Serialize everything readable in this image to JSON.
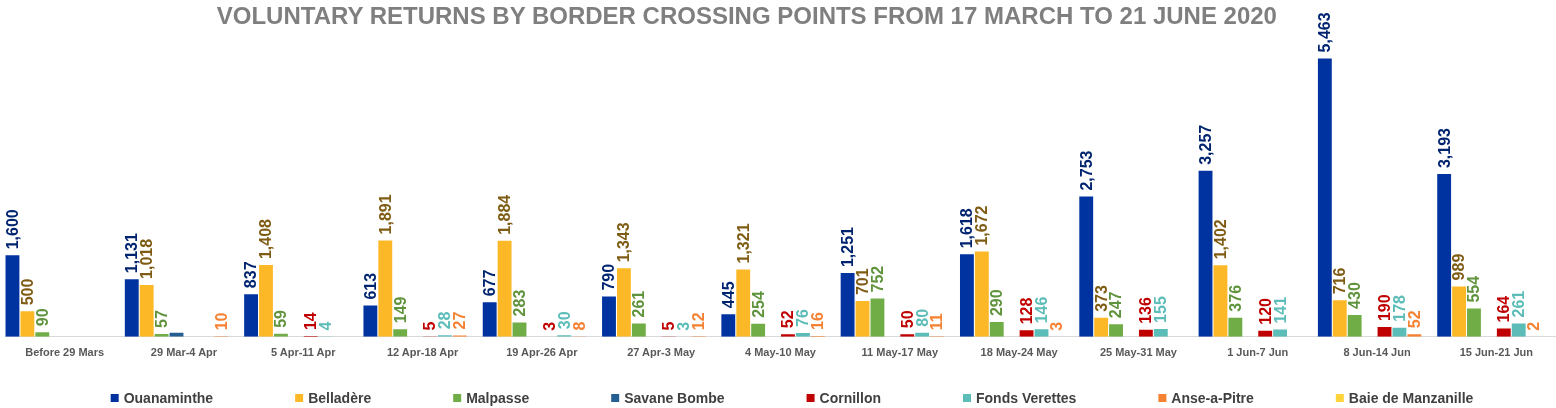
{
  "chart_data": {
    "type": "bar",
    "title": "VOLUNTARY RETURNS BY BORDER CROSSING POINTS FROM 17 MARCH TO 21 JUNE 2020",
    "categories": [
      "Before 29 Mars",
      "29 Mar-4 Apr",
      "5 Apr-11 Apr",
      "12 Apr-18 Apr",
      "19 Apr-26 Apr",
      "27 Apr-3 May",
      "4 May-10 May",
      "11 May-17 May",
      "18 May-24 May",
      "25 May-31 May",
      "1 Jun-7 Jun",
      "8 Jun-14 Jun",
      "15 Jun-21 Jun"
    ],
    "series": [
      {
        "name": "Ouanaminthe",
        "color": "#0033a0",
        "values": [
          1600,
          1131,
          837,
          613,
          677,
          790,
          445,
          1251,
          1618,
          2753,
          3257,
          5463,
          3193
        ],
        "value_labels": [
          "1,600",
          "1,131",
          "837",
          "613",
          "677",
          "790",
          "445",
          "1,251",
          "1,618",
          "2,753",
          "3,257",
          "5,463",
          "3,193"
        ]
      },
      {
        "name": "Belladère",
        "color": "#fdb827",
        "values": [
          500,
          1018,
          1408,
          1891,
          1884,
          1343,
          1321,
          701,
          1672,
          373,
          1402,
          716,
          989
        ],
        "value_labels": [
          "500",
          "1,018",
          "1,408",
          "1,891",
          "1,884",
          "1,343",
          "1,321",
          "701",
          "1,672",
          "373",
          "1,402",
          "716",
          "989"
        ]
      },
      {
        "name": "Malpasse",
        "color": "#70ad47",
        "values": [
          90,
          57,
          59,
          149,
          283,
          261,
          254,
          752,
          290,
          247,
          376,
          430,
          554
        ],
        "value_labels": [
          "90",
          "57",
          "59",
          "149",
          "283",
          "261",
          "254",
          "752",
          "290",
          "247",
          "376",
          "430",
          "554"
        ]
      },
      {
        "name": "Savane Bombe",
        "color": "#255e91",
        "values": [
          null,
          80,
          null,
          null,
          null,
          null,
          null,
          null,
          null,
          null,
          null,
          null,
          null
        ]
      },
      {
        "name": "Cornillon",
        "color": "#c00000",
        "values": [
          null,
          null,
          14,
          5,
          3,
          5,
          52,
          50,
          128,
          136,
          120,
          190,
          164
        ],
        "value_labels": [
          null,
          null,
          "14",
          "5",
          "3",
          "5",
          "52",
          "50",
          "128",
          "136",
          "120",
          "190",
          "164"
        ]
      },
      {
        "name": "Fonds Verettes",
        "color": "#5bbcb8",
        "values": [
          null,
          null,
          4,
          28,
          30,
          3,
          76,
          80,
          146,
          155,
          141,
          178,
          261
        ],
        "value_labels": [
          null,
          null,
          "4",
          "28",
          "30",
          "3",
          "76",
          "80",
          "146",
          "155",
          "141",
          "178",
          "261"
        ]
      },
      {
        "name": "Anse-a-Pitre",
        "color": "#f58233",
        "values": [
          null,
          10,
          null,
          27,
          8,
          12,
          16,
          11,
          3,
          null,
          null,
          52,
          2
        ],
        "value_labels": [
          null,
          "10",
          null,
          "27",
          "8",
          "12",
          "16",
          "11",
          "3",
          null,
          null,
          "52",
          "2"
        ]
      },
      {
        "name": "Baie de Manzanille",
        "color": "#ffd43b",
        "values": [
          null,
          null,
          null,
          null,
          null,
          null,
          null,
          null,
          null,
          null,
          null,
          null,
          null
        ]
      }
    ],
    "legend": "bottom"
  }
}
